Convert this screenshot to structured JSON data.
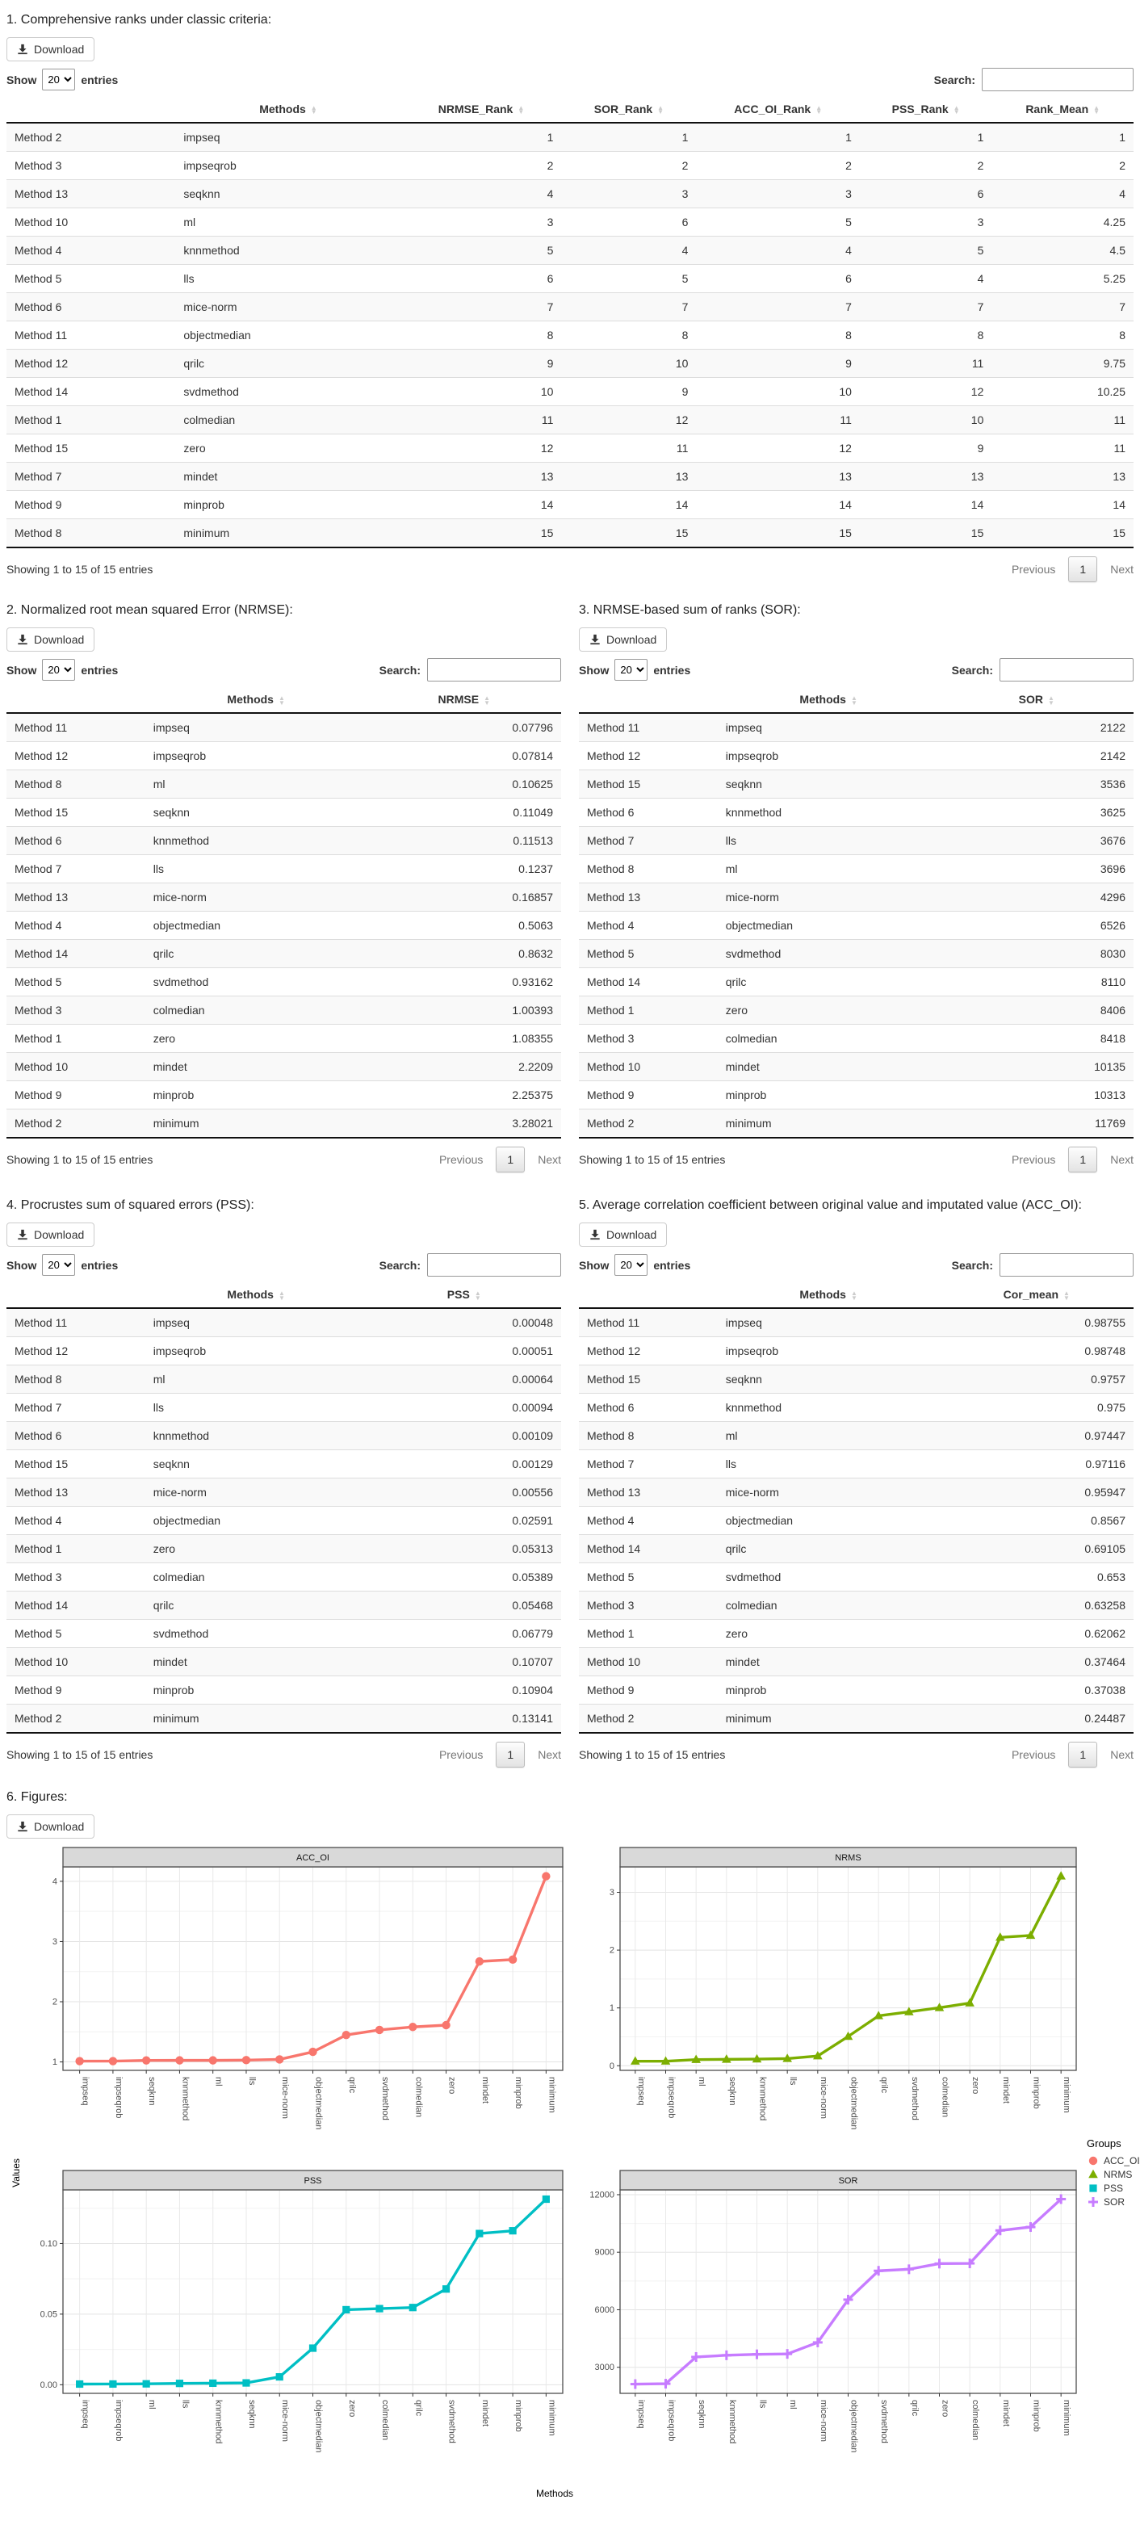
{
  "common": {
    "download_label": "Download",
    "show_label": "Show",
    "show_value": "20",
    "entries_label": "entries",
    "search_label": "Search:",
    "info_text": "Showing 1 to 15 of 15 entries",
    "previous_label": "Previous",
    "page_number": "1",
    "next_label": "Next"
  },
  "section1": {
    "title": "1. Comprehensive ranks under classic criteria:",
    "columns": [
      "Methods",
      "NRMSE_Rank",
      "SOR_Rank",
      "ACC_OI_Rank",
      "PSS_Rank",
      "Rank_Mean"
    ],
    "rows": [
      [
        "Method 2",
        "impseq",
        "1",
        "1",
        "1",
        "1",
        "1"
      ],
      [
        "Method 3",
        "impseqrob",
        "2",
        "2",
        "2",
        "2",
        "2"
      ],
      [
        "Method 13",
        "seqknn",
        "4",
        "3",
        "3",
        "6",
        "4"
      ],
      [
        "Method 10",
        "ml",
        "3",
        "6",
        "5",
        "3",
        "4.25"
      ],
      [
        "Method 4",
        "knnmethod",
        "5",
        "4",
        "4",
        "5",
        "4.5"
      ],
      [
        "Method 5",
        "lls",
        "6",
        "5",
        "6",
        "4",
        "5.25"
      ],
      [
        "Method 6",
        "mice-norm",
        "7",
        "7",
        "7",
        "7",
        "7"
      ],
      [
        "Method 11",
        "objectmedian",
        "8",
        "8",
        "8",
        "8",
        "8"
      ],
      [
        "Method 12",
        "qrilc",
        "9",
        "10",
        "9",
        "11",
        "9.75"
      ],
      [
        "Method 14",
        "svdmethod",
        "10",
        "9",
        "10",
        "12",
        "10.25"
      ],
      [
        "Method 1",
        "colmedian",
        "11",
        "12",
        "11",
        "10",
        "11"
      ],
      [
        "Method 15",
        "zero",
        "12",
        "11",
        "12",
        "9",
        "11"
      ],
      [
        "Method 7",
        "mindet",
        "13",
        "13",
        "13",
        "13",
        "13"
      ],
      [
        "Method 9",
        "minprob",
        "14",
        "14",
        "14",
        "14",
        "14"
      ],
      [
        "Method 8",
        "minimum",
        "15",
        "15",
        "15",
        "15",
        "15"
      ]
    ]
  },
  "section2": {
    "title": "2. Normalized root mean squared Error (NRMSE):",
    "columns": [
      "Methods",
      "NRMSE"
    ],
    "rows": [
      [
        "Method 11",
        "impseq",
        "0.07796"
      ],
      [
        "Method 12",
        "impseqrob",
        "0.07814"
      ],
      [
        "Method 8",
        "ml",
        "0.10625"
      ],
      [
        "Method 15",
        "seqknn",
        "0.11049"
      ],
      [
        "Method 6",
        "knnmethod",
        "0.11513"
      ],
      [
        "Method 7",
        "lls",
        "0.1237"
      ],
      [
        "Method 13",
        "mice-norm",
        "0.16857"
      ],
      [
        "Method 4",
        "objectmedian",
        "0.5063"
      ],
      [
        "Method 14",
        "qrilc",
        "0.8632"
      ],
      [
        "Method 5",
        "svdmethod",
        "0.93162"
      ],
      [
        "Method 3",
        "colmedian",
        "1.00393"
      ],
      [
        "Method 1",
        "zero",
        "1.08355"
      ],
      [
        "Method 10",
        "mindet",
        "2.2209"
      ],
      [
        "Method 9",
        "minprob",
        "2.25375"
      ],
      [
        "Method 2",
        "minimum",
        "3.28021"
      ]
    ]
  },
  "section3": {
    "title": "3. NRMSE-based sum of ranks (SOR):",
    "columns": [
      "Methods",
      "SOR"
    ],
    "rows": [
      [
        "Method 11",
        "impseq",
        "2122"
      ],
      [
        "Method 12",
        "impseqrob",
        "2142"
      ],
      [
        "Method 15",
        "seqknn",
        "3536"
      ],
      [
        "Method 6",
        "knnmethod",
        "3625"
      ],
      [
        "Method 7",
        "lls",
        "3676"
      ],
      [
        "Method 8",
        "ml",
        "3696"
      ],
      [
        "Method 13",
        "mice-norm",
        "4296"
      ],
      [
        "Method 4",
        "objectmedian",
        "6526"
      ],
      [
        "Method 5",
        "svdmethod",
        "8030"
      ],
      [
        "Method 14",
        "qrilc",
        "8110"
      ],
      [
        "Method 1",
        "zero",
        "8406"
      ],
      [
        "Method 3",
        "colmedian",
        "8418"
      ],
      [
        "Method 10",
        "mindet",
        "10135"
      ],
      [
        "Method 9",
        "minprob",
        "10313"
      ],
      [
        "Method 2",
        "minimum",
        "11769"
      ]
    ]
  },
  "section4": {
    "title": "4. Procrustes sum of squared errors (PSS):",
    "columns": [
      "Methods",
      "PSS"
    ],
    "rows": [
      [
        "Method 11",
        "impseq",
        "0.00048"
      ],
      [
        "Method 12",
        "impseqrob",
        "0.00051"
      ],
      [
        "Method 8",
        "ml",
        "0.00064"
      ],
      [
        "Method 7",
        "lls",
        "0.00094"
      ],
      [
        "Method 6",
        "knnmethod",
        "0.00109"
      ],
      [
        "Method 15",
        "seqknn",
        "0.00129"
      ],
      [
        "Method 13",
        "mice-norm",
        "0.00556"
      ],
      [
        "Method 4",
        "objectmedian",
        "0.02591"
      ],
      [
        "Method 1",
        "zero",
        "0.05313"
      ],
      [
        "Method 3",
        "colmedian",
        "0.05389"
      ],
      [
        "Method 14",
        "qrilc",
        "0.05468"
      ],
      [
        "Method 5",
        "svdmethod",
        "0.06779"
      ],
      [
        "Method 10",
        "mindet",
        "0.10707"
      ],
      [
        "Method 9",
        "minprob",
        "0.10904"
      ],
      [
        "Method 2",
        "minimum",
        "0.13141"
      ]
    ]
  },
  "section5": {
    "title": "5. Average correlation coefficient between original value and imputated value (ACC_OI):",
    "columns": [
      "Methods",
      "Cor_mean"
    ],
    "rows": [
      [
        "Method 11",
        "impseq",
        "0.98755"
      ],
      [
        "Method 12",
        "impseqrob",
        "0.98748"
      ],
      [
        "Method 15",
        "seqknn",
        "0.9757"
      ],
      [
        "Method 6",
        "knnmethod",
        "0.975"
      ],
      [
        "Method 8",
        "ml",
        "0.97447"
      ],
      [
        "Method 7",
        "lls",
        "0.97116"
      ],
      [
        "Method 13",
        "mice-norm",
        "0.95947"
      ],
      [
        "Method 4",
        "objectmedian",
        "0.8567"
      ],
      [
        "Method 14",
        "qrilc",
        "0.69105"
      ],
      [
        "Method 5",
        "svdmethod",
        "0.653"
      ],
      [
        "Method 3",
        "colmedian",
        "0.63258"
      ],
      [
        "Method 1",
        "zero",
        "0.62062"
      ],
      [
        "Method 10",
        "mindet",
        "0.37464"
      ],
      [
        "Method 9",
        "minprob",
        "0.37038"
      ],
      [
        "Method 2",
        "minimum",
        "0.24487"
      ]
    ]
  },
  "section6": {
    "title": "6. Figures:",
    "ylabel": "Values",
    "xlabel": "Methods",
    "legend_title": "Groups",
    "legend": [
      {
        "label": "ACC_OI",
        "color": "#F8766D",
        "shape": "circle"
      },
      {
        "label": "NRMS",
        "color": "#7CAE00",
        "shape": "triangle"
      },
      {
        "label": "PSS",
        "color": "#00BFC4",
        "shape": "square"
      },
      {
        "label": "SOR",
        "color": "#C77CFF",
        "shape": "plus"
      }
    ]
  },
  "chart_data": [
    {
      "type": "line",
      "title": "ACC_OI",
      "color": "#F8766D",
      "shape": "circle",
      "categories": [
        "impseq",
        "impseqrob",
        "seqknn",
        "knnmethod",
        "ml",
        "lls",
        "mice-norm",
        "objectmedian",
        "qrilc",
        "svdmethod",
        "colmedian",
        "zero",
        "mindet",
        "minprob",
        "minimum"
      ],
      "values": [
        1.013,
        1.013,
        1.025,
        1.026,
        1.026,
        1.03,
        1.042,
        1.167,
        1.447,
        1.531,
        1.581,
        1.611,
        2.669,
        2.7,
        4.084
      ],
      "yticks": [
        1,
        2,
        3,
        4
      ],
      "ytick_labels": [
        "1",
        "2",
        "3",
        "4"
      ],
      "ylim": [
        0.86,
        4.24
      ],
      "grid": true,
      "xlabel": "Methods",
      "ylabel": "Values"
    },
    {
      "type": "line",
      "title": "NRMS",
      "color": "#7CAE00",
      "shape": "triangle",
      "categories": [
        "impseq",
        "impseqrob",
        "ml",
        "seqknn",
        "knnmethod",
        "lls",
        "mice-norm",
        "objectmedian",
        "qrilc",
        "svdmethod",
        "colmedian",
        "zero",
        "mindet",
        "minprob",
        "minimum"
      ],
      "values": [
        0.07796,
        0.07814,
        0.10625,
        0.11049,
        0.11513,
        0.1237,
        0.16857,
        0.5063,
        0.8632,
        0.93162,
        1.00393,
        1.08355,
        2.2209,
        2.25375,
        3.28021
      ],
      "yticks": [
        0,
        1,
        2,
        3
      ],
      "ytick_labels": [
        "0",
        "1",
        "2",
        "3"
      ],
      "ylim": [
        -0.08,
        3.44
      ],
      "grid": true,
      "xlabel": "Methods",
      "ylabel": "Values"
    },
    {
      "type": "line",
      "title": "PSS",
      "color": "#00BFC4",
      "shape": "square",
      "categories": [
        "impseq",
        "impseqrob",
        "ml",
        "lls",
        "knnmethod",
        "seqknn",
        "mice-norm",
        "objectmedian",
        "zero",
        "colmedian",
        "qrilc",
        "svdmethod",
        "mindet",
        "minprob",
        "minimum"
      ],
      "values": [
        0.00048,
        0.00051,
        0.00064,
        0.00094,
        0.00109,
        0.00129,
        0.00556,
        0.02591,
        0.05313,
        0.05389,
        0.05468,
        0.06779,
        0.10707,
        0.10904,
        0.13141
      ],
      "yticks": [
        0,
        0.05,
        0.1
      ],
      "ytick_labels": [
        "0.00",
        "0.05",
        "0.10"
      ],
      "ylim": [
        -0.0061,
        0.138
      ],
      "grid": true,
      "xlabel": "Methods",
      "ylabel": "Values"
    },
    {
      "type": "line",
      "title": "SOR",
      "color": "#C77CFF",
      "shape": "plus",
      "categories": [
        "impseq",
        "impseqrob",
        "seqknn",
        "knnmethod",
        "lls",
        "ml",
        "mice-norm",
        "objectmedian",
        "svdmethod",
        "qrilc",
        "zero",
        "colmedian",
        "mindet",
        "minprob",
        "minimum"
      ],
      "values": [
        2122,
        2142,
        3536,
        3625,
        3676,
        3696,
        4296,
        6526,
        8030,
        8110,
        8406,
        8418,
        10135,
        10313,
        11769
      ],
      "yticks": [
        3000,
        6000,
        9000,
        12000
      ],
      "ytick_labels": [
        "3000",
        "6000",
        "9000",
        "12000"
      ],
      "ylim": [
        1640,
        12251
      ],
      "grid": true,
      "xlabel": "Methods",
      "ylabel": "Values"
    }
  ]
}
